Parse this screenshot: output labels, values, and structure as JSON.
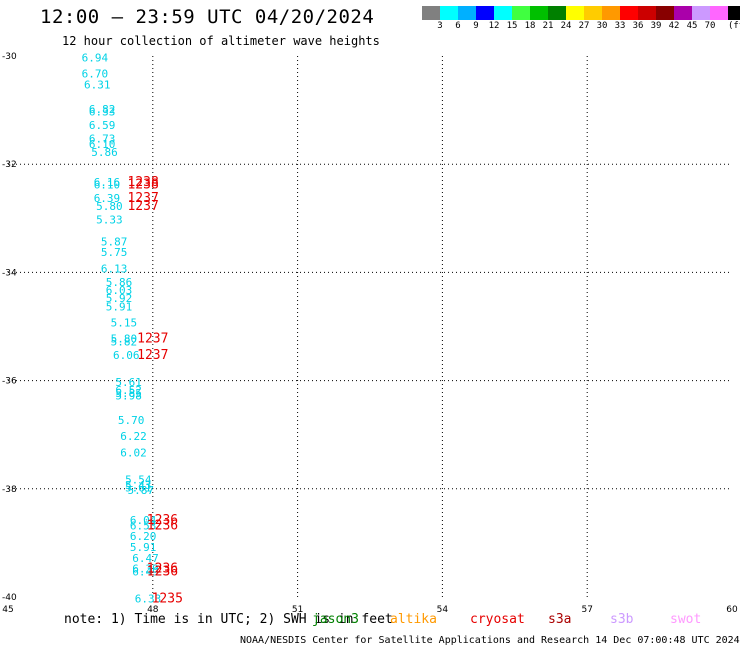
{
  "header": {
    "title": "12:00 – 23:59 UTC 04/20/2024",
    "subtitle": "12 hour collection of altimeter wave heights"
  },
  "legend": {
    "colors": [
      "#808080",
      "#00ffff",
      "#00b0ff",
      "#0000ff",
      "#00ffff",
      "#40ff40",
      "#00c000",
      "#008000",
      "#ffff00",
      "#ffcc00",
      "#ff9900",
      "#ff0000",
      "#cc0000",
      "#880000",
      "#aa00aa",
      "#cc99ff",
      "#ff66ff",
      "#000000"
    ],
    "labels": [
      "3",
      "6",
      "9",
      "12",
      "15",
      "18",
      "21",
      "24",
      "27",
      "30",
      "33",
      "36",
      "39",
      "42",
      "45",
      "70"
    ],
    "unit": "(ft)"
  },
  "chart_data": {
    "type": "scatter",
    "title": "12:00 – 23:59 UTC 04/20/2024",
    "xlabel": "",
    "ylabel": "",
    "xlim": [
      45,
      60
    ],
    "ylim": [
      -40,
      -30
    ],
    "x_ticks": [
      "45",
      "48",
      "51",
      "54",
      "57",
      "60"
    ],
    "y_ticks": [
      "-30",
      "-32",
      "-34",
      "-36",
      "-38",
      "-40"
    ],
    "grid": true,
    "series": [
      {
        "name": "jason3",
        "color": "#00d2e6",
        "points": [
          {
            "x": 46.8,
            "y": -30.1,
            "label": "6.94"
          },
          {
            "x": 46.8,
            "y": -30.4,
            "label": "6.70"
          },
          {
            "x": 46.85,
            "y": -30.6,
            "label": "6.31"
          },
          {
            "x": 46.95,
            "y": -31.05,
            "label": "6.82"
          },
          {
            "x": 46.95,
            "y": -31.1,
            "label": "6.33"
          },
          {
            "x": 46.95,
            "y": -31.35,
            "label": "6.59"
          },
          {
            "x": 46.95,
            "y": -31.6,
            "label": "6.73"
          },
          {
            "x": 46.95,
            "y": -31.7,
            "label": "6.10"
          },
          {
            "x": 47.0,
            "y": -31.85,
            "label": "5.86"
          },
          {
            "x": 47.05,
            "y": -32.4,
            "label": "6.16"
          },
          {
            "x": 47.05,
            "y": -32.45,
            "label": "6.10"
          },
          {
            "x": 47.05,
            "y": -32.7,
            "label": "6.39"
          },
          {
            "x": 47.1,
            "y": -32.85,
            "label": "5.80"
          },
          {
            "x": 47.1,
            "y": -33.1,
            "label": "5.33"
          },
          {
            "x": 47.2,
            "y": -33.5,
            "label": "5.87"
          },
          {
            "x": 47.2,
            "y": -33.7,
            "label": "5.75"
          },
          {
            "x": 47.2,
            "y": -34.0,
            "label": "6.13"
          },
          {
            "x": 47.3,
            "y": -34.25,
            "label": "5.86"
          },
          {
            "x": 47.3,
            "y": -34.4,
            "label": "6.03"
          },
          {
            "x": 47.3,
            "y": -34.55,
            "label": "5.92"
          },
          {
            "x": 47.3,
            "y": -34.7,
            "label": "5.91"
          },
          {
            "x": 47.4,
            "y": -35.0,
            "label": "5.15"
          },
          {
            "x": 47.4,
            "y": -35.3,
            "label": "5.80"
          },
          {
            "x": 47.4,
            "y": -35.35,
            "label": "5.82"
          },
          {
            "x": 47.45,
            "y": -35.6,
            "label": "6.06"
          },
          {
            "x": 47.5,
            "y": -36.1,
            "label": "5.61"
          },
          {
            "x": 47.5,
            "y": -36.25,
            "label": "6.52"
          },
          {
            "x": 47.5,
            "y": -36.3,
            "label": "5.85"
          },
          {
            "x": 47.5,
            "y": -36.35,
            "label": "5.98"
          },
          {
            "x": 47.55,
            "y": -36.8,
            "label": "5.70"
          },
          {
            "x": 47.6,
            "y": -37.1,
            "label": "6.22"
          },
          {
            "x": 47.6,
            "y": -37.4,
            "label": "6.02"
          },
          {
            "x": 47.7,
            "y": -37.9,
            "label": "5.54"
          },
          {
            "x": 47.7,
            "y": -38.0,
            "label": "5.43"
          },
          {
            "x": 47.7,
            "y": -38.05,
            "label": "5.61"
          },
          {
            "x": 47.75,
            "y": -38.1,
            "label": "5.87"
          },
          {
            "x": 47.8,
            "y": -38.65,
            "label": "6.04"
          },
          {
            "x": 47.8,
            "y": -38.75,
            "label": "6.53"
          },
          {
            "x": 47.8,
            "y": -38.95,
            "label": "6.20"
          },
          {
            "x": 47.8,
            "y": -39.15,
            "label": "5.91"
          },
          {
            "x": 47.85,
            "y": -39.35,
            "label": "6.47"
          },
          {
            "x": 47.85,
            "y": -39.55,
            "label": "6.39"
          },
          {
            "x": 47.85,
            "y": -39.6,
            "label": "6.49"
          },
          {
            "x": 47.9,
            "y": -40.1,
            "label": "6.33"
          }
        ]
      },
      {
        "name": "cryosat",
        "color": "#e60000",
        "points": [
          {
            "x": 47.8,
            "y": -32.4,
            "label": "1238"
          },
          {
            "x": 47.8,
            "y": -32.45,
            "label": "1238"
          },
          {
            "x": 47.8,
            "y": -32.7,
            "label": "1237"
          },
          {
            "x": 47.8,
            "y": -32.85,
            "label": "1237"
          },
          {
            "x": 48.0,
            "y": -35.3,
            "label": "1237"
          },
          {
            "x": 48.0,
            "y": -35.6,
            "label": "1237"
          },
          {
            "x": 48.2,
            "y": -38.65,
            "label": "1236"
          },
          {
            "x": 48.2,
            "y": -38.75,
            "label": "1236"
          },
          {
            "x": 48.2,
            "y": -39.55,
            "label": "1236"
          },
          {
            "x": 48.2,
            "y": -39.6,
            "label": "1236"
          },
          {
            "x": 48.3,
            "y": -40.1,
            "label": "1235"
          }
        ]
      }
    ]
  },
  "footer": {
    "note": "note:  1) Time is in UTC; 2) SWH is in feet",
    "satellites": [
      {
        "name": "jason3",
        "color": "#008000"
      },
      {
        "name": "altika",
        "color": "#ff9900"
      },
      {
        "name": "cryosat",
        "color": "#e60000"
      },
      {
        "name": "s3a",
        "color": "#aa0000"
      },
      {
        "name": "s3b",
        "color": "#cc99ff"
      },
      {
        "name": "swot",
        "color": "#ff99ff"
      }
    ],
    "credit": "NOAA/NESDIS Center for Satellite Applications and Research    14 Dec 07:00:48 UTC 2024"
  }
}
